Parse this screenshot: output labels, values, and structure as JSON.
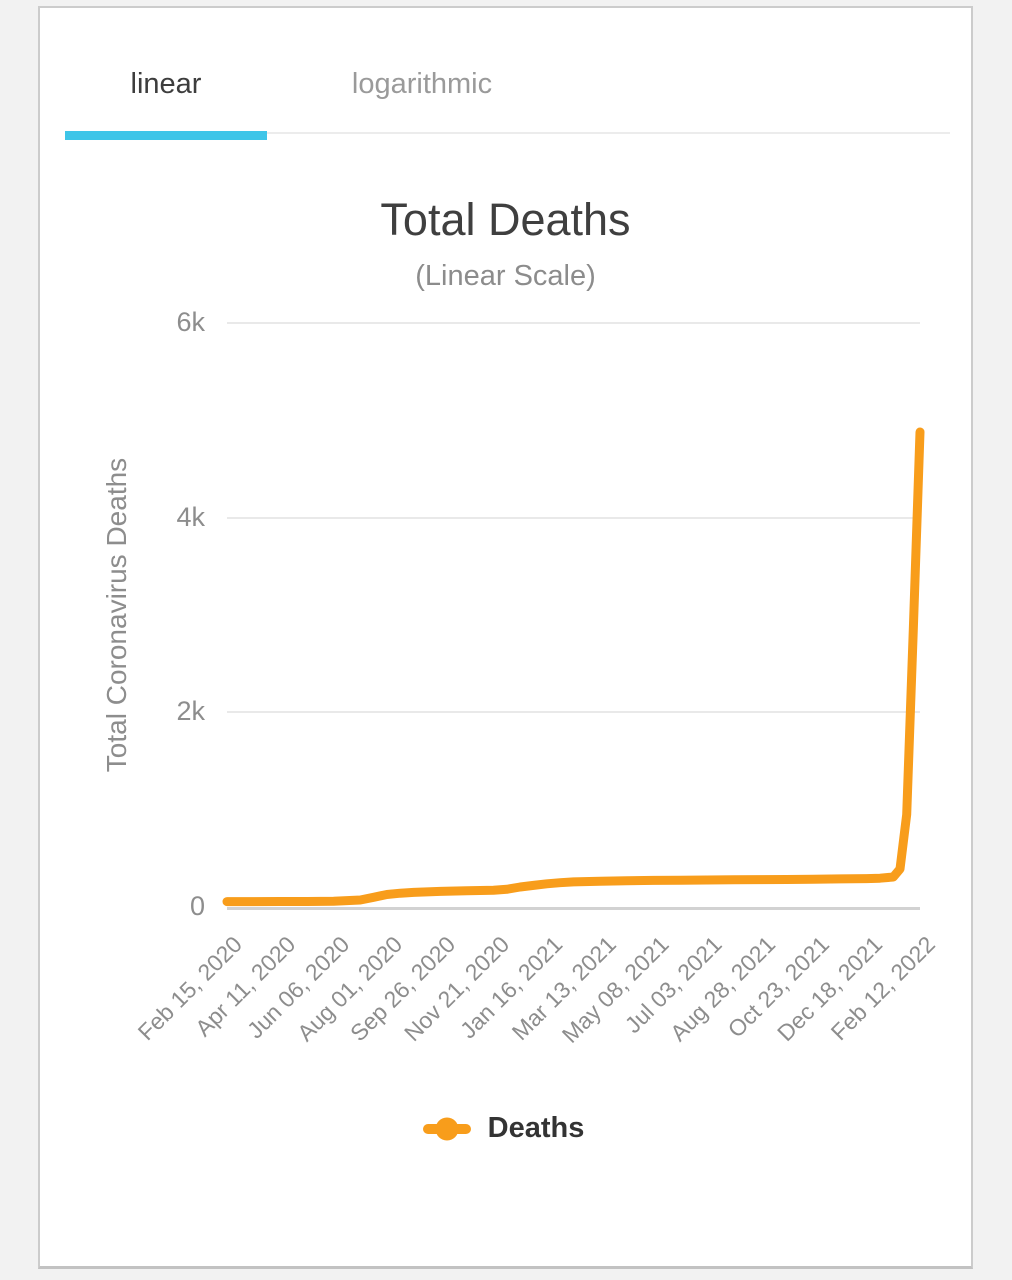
{
  "tabs": [
    {
      "label": "linear",
      "active": true
    },
    {
      "label": "logarithmic",
      "active": false
    }
  ],
  "colors": {
    "tab_indicator": "#3ec5e8",
    "series": "#f89d1b",
    "gridline": "#e9e9e9",
    "axis_line": "#d2d2d2",
    "title_text": "#3f3f3f",
    "muted_text": "#8d8d8d"
  },
  "chart_data": {
    "type": "line",
    "title": "Total Deaths",
    "subtitle": "(Linear Scale)",
    "xlabel": "",
    "ylabel": "Total Coronavirus Deaths",
    "ylim": [
      0,
      6000
    ],
    "ytick_values": [
      0,
      2000,
      4000,
      6000
    ],
    "ytick_labels": [
      "0",
      "2k",
      "4k",
      "6k"
    ],
    "xtick_labels": [
      "Feb 15, 2020",
      "Apr 11, 2020",
      "Jun 06, 2020",
      "Aug 01, 2020",
      "Sep 26, 2020",
      "Nov 21, 2020",
      "Jan 16, 2021",
      "Mar 13, 2021",
      "May 08, 2021",
      "Jul 03, 2021",
      "Aug 28, 2021",
      "Oct 23, 2021",
      "Dec 18, 2021",
      "Feb 12, 2022"
    ],
    "grid": true,
    "legend": [
      "Deaths"
    ],
    "legend_position": "bottom-center",
    "series": [
      {
        "name": "Deaths",
        "color": "#f89d1b",
        "points": [
          [
            "Feb 15, 2020",
            55
          ],
          [
            "Mar 14, 2020",
            55
          ],
          [
            "Apr 11, 2020",
            57
          ],
          [
            "May 09, 2020",
            57
          ],
          [
            "Jun 06, 2020",
            60
          ],
          [
            "Jul 04, 2020",
            72
          ],
          [
            "Jul 18, 2020",
            100
          ],
          [
            "Aug 01, 2020",
            128
          ],
          [
            "Aug 15, 2020",
            142
          ],
          [
            "Aug 29, 2020",
            150
          ],
          [
            "Sep 26, 2020",
            160
          ],
          [
            "Oct 24, 2020",
            166
          ],
          [
            "Nov 21, 2020",
            172
          ],
          [
            "Dec 05, 2020",
            182
          ],
          [
            "Dec 19, 2020",
            205
          ],
          [
            "Jan 02, 2021",
            222
          ],
          [
            "Jan 16, 2021",
            238
          ],
          [
            "Jan 30, 2021",
            250
          ],
          [
            "Feb 13, 2021",
            258
          ],
          [
            "Mar 13, 2021",
            265
          ],
          [
            "Apr 10, 2021",
            270
          ],
          [
            "May 08, 2021",
            273
          ],
          [
            "Jun 05, 2021",
            275
          ],
          [
            "Jul 03, 2021",
            277
          ],
          [
            "Jul 31, 2021",
            279
          ],
          [
            "Aug 28, 2021",
            281
          ],
          [
            "Sep 25, 2021",
            283
          ],
          [
            "Oct 23, 2021",
            286
          ],
          [
            "Nov 20, 2021",
            289
          ],
          [
            "Dec 18, 2021",
            292
          ],
          [
            "Jan 01, 2022",
            296
          ],
          [
            "Jan 15, 2022",
            308
          ],
          [
            "Jan 22, 2022",
            390
          ],
          [
            "Jan 29, 2022",
            950
          ],
          [
            "Feb 05, 2022",
            2850
          ],
          [
            "Feb 12, 2022",
            4880
          ]
        ]
      }
    ]
  }
}
